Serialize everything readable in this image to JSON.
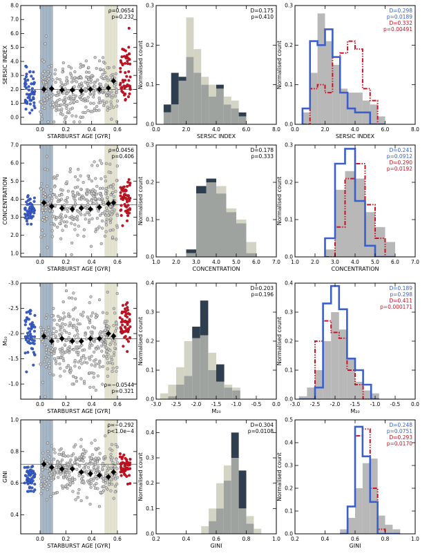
{
  "colors": {
    "dark_bar": "#2f3e4e",
    "light_bar": "#d4d4c4",
    "overlap_bar": "#9ea3a0",
    "grey_hist": "#b8b8b8",
    "blue": "#3a5fcd",
    "red": "#cc1122",
    "band_blue": "#8fa3b6",
    "band_beige": "#dcdcc4",
    "point_grey": "#cccccc"
  },
  "chart_data": [
    {
      "id": "r1c1",
      "type": "scatter",
      "xlabel": "STARBURST AGE [GYR]",
      "ylabel": "SERSIC INDEX",
      "xlim": [
        -0.15,
        0.75
      ],
      "ylim": [
        -0.5,
        8.0
      ],
      "xticks": [
        0.0,
        0.2,
        0.4,
        0.6
      ],
      "xticklabels": [
        "0.0",
        "0.2",
        "0.4",
        "0.6"
      ],
      "yticks": [
        0.0,
        1.0,
        2.0,
        3.0,
        4.0,
        5.0,
        6.0,
        7.0,
        8.0
      ],
      "yticklabels": [
        "0.0",
        "1.0",
        "2.0",
        "3.0",
        "4.0",
        "5.0",
        "6.0",
        "7.0",
        "8.0"
      ],
      "hline": 2.0,
      "bands": [
        [
          0.0,
          0.1,
          "blue"
        ],
        [
          0.5,
          0.6,
          "beige"
        ]
      ],
      "stats": [
        "ρ=0.0654",
        "p=0.232"
      ],
      "stats_pos": "top",
      "binned_x": [
        0.03,
        0.09,
        0.17,
        0.25,
        0.32,
        0.39,
        0.46,
        0.53,
        0.57
      ],
      "binned_y": [
        2.0,
        2.05,
        1.95,
        1.95,
        1.9,
        2.0,
        2.0,
        2.1,
        2.6
      ],
      "blue_y": [
        1.9,
        0.8
      ],
      "red_y": [
        3.0,
        1.2
      ],
      "grey_y": [
        1.9,
        1.1
      ],
      "seed": 11
    },
    {
      "id": "r1c2",
      "type": "bar",
      "xlabel": "SERSIC INDEX",
      "ylabel": "Normalised count",
      "xlim": [
        0.0,
        8.0
      ],
      "ylim": [
        0.0,
        0.3
      ],
      "xticks": [
        0,
        2,
        4,
        6,
        8
      ],
      "xticklabels": [
        "0.0",
        "2.0",
        "4.0",
        "6.0",
        "8.0"
      ],
      "yticks": [
        0.0,
        0.1,
        0.2,
        0.3
      ],
      "yticklabels": [
        "0.0",
        "0.1",
        "0.2",
        "0.3"
      ],
      "bin_edges": [
        0.5,
        1.0,
        1.5,
        2.0,
        2.5,
        3.0,
        3.5,
        4.0,
        4.5,
        5.0,
        5.5,
        6.0
      ],
      "series": [
        {
          "name": "dark",
          "values": [
            0.05,
            0.13,
            0.12,
            0.17,
            0.13,
            0.1,
            0.07,
            0.1,
            0.05,
            0.04,
            0.03
          ]
        },
        {
          "name": "light",
          "values": [
            0.03,
            0.05,
            0.11,
            0.27,
            0.19,
            0.12,
            0.1,
            0.09,
            0.07,
            0.06,
            0.02
          ]
        }
      ],
      "stats": [
        "D=0.175",
        "p=0.410"
      ]
    },
    {
      "id": "r1c3",
      "type": "bar",
      "xlabel": "SERSIC INDEX",
      "ylabel": "Normalised count",
      "xlim": [
        0.0,
        8.0
      ],
      "ylim": [
        0.0,
        0.3
      ],
      "xticks": [
        0,
        2,
        4,
        6,
        8
      ],
      "xticklabels": [
        "0.0",
        "2.0",
        "4.0",
        "6.0",
        "8.0"
      ],
      "yticks": [
        0.0,
        0.1,
        0.2,
        0.3
      ],
      "yticklabels": [
        "0.0",
        "0.1",
        "0.2",
        "0.3"
      ],
      "bin_edges": [
        0.5,
        1.0,
        1.5,
        2.0,
        2.5,
        3.0,
        3.5,
        4.0,
        4.5,
        5.0,
        5.5,
        6.0
      ],
      "series": [
        {
          "name": "grey",
          "values": [
            0.03,
            0.13,
            0.28,
            0.21,
            0.15,
            0.09,
            0.08,
            0.08,
            0.06,
            0.05,
            0.02
          ]
        },
        {
          "name": "blue",
          "values": [
            0.04,
            0.21,
            0.2,
            0.24,
            0.17,
            0.08,
            0.04,
            0.03,
            0.03,
            0.0,
            0.0
          ]
        },
        {
          "name": "red",
          "values": [
            0.0,
            0.09,
            0.1,
            0.08,
            0.17,
            0.18,
            0.21,
            0.19,
            0.09,
            0.06,
            0.0
          ]
        }
      ],
      "stats": [
        "D=0.298",
        "p=0.0189",
        "D=0.332",
        "p=0.00491"
      ],
      "stats_colors": [
        "blue",
        "blue",
        "red",
        "red"
      ]
    },
    {
      "id": "r2c1",
      "type": "scatter",
      "xlabel": "STARBURST AGE [GYR]",
      "ylabel": "CONCENTRATION",
      "xlim": [
        -0.15,
        0.75
      ],
      "ylim": [
        0.8,
        7.0
      ],
      "xticks": [
        0.0,
        0.2,
        0.4,
        0.6
      ],
      "xticklabels": [
        "0.0",
        "0.2",
        "0.4",
        "0.6"
      ],
      "yticks": [
        1.0,
        2.0,
        3.0,
        4.0,
        5.0,
        6.0,
        7.0
      ],
      "yticklabels": [
        "1.0",
        "2.0",
        "3.0",
        "4.0",
        "5.0",
        "6.0",
        "7.0"
      ],
      "hline": 3.7,
      "bands": [
        [
          0.0,
          0.1,
          "blue"
        ],
        [
          0.5,
          0.6,
          "beige"
        ]
      ],
      "stats": [
        "ρ=0.0456",
        "p=0.406"
      ],
      "stats_pos": "top",
      "binned_x": [
        0.03,
        0.09,
        0.17,
        0.25,
        0.32,
        0.39,
        0.46,
        0.53,
        0.57
      ],
      "binned_y": [
        3.8,
        3.6,
        3.5,
        3.45,
        3.5,
        3.45,
        3.55,
        3.75,
        3.8
      ],
      "blue_y": [
        3.5,
        0.4
      ],
      "red_y": [
        4.0,
        0.5
      ],
      "grey_y": [
        3.8,
        0.9
      ],
      "seed": 23
    },
    {
      "id": "r2c2",
      "type": "bar",
      "xlabel": "CONCENTRATION",
      "ylabel": "Normalised count",
      "xlim": [
        1.0,
        7.0
      ],
      "ylim": [
        0.0,
        0.3
      ],
      "xticks": [
        1,
        2,
        3,
        4,
        5,
        6,
        7
      ],
      "xticklabels": [
        "1.0",
        "2.0",
        "3.0",
        "4.0",
        "5.0",
        "6.0",
        "7.0"
      ],
      "yticks": [
        0.0,
        0.1,
        0.2,
        0.3
      ],
      "yticklabels": [
        "0.0",
        "0.1",
        "0.2",
        "0.3"
      ],
      "bin_edges": [
        2.5,
        3.0,
        3.5,
        4.0,
        4.5,
        5.0,
        5.5,
        6.0
      ],
      "series": [
        {
          "name": "dark",
          "values": [
            0.02,
            0.19,
            0.21,
            0.17,
            0.12,
            0.09,
            0.01
          ]
        },
        {
          "name": "light",
          "values": [
            0.01,
            0.17,
            0.2,
            0.19,
            0.13,
            0.1,
            0.04
          ]
        }
      ],
      "stats": [
        "D=0.178",
        "p=0.333"
      ]
    },
    {
      "id": "r2c3",
      "type": "bar",
      "xlabel": "CONCENTRATION",
      "ylabel": "Normalised count",
      "xlim": [
        1.0,
        7.0
      ],
      "ylim": [
        0.0,
        0.3
      ],
      "xticks": [
        1,
        2,
        3,
        4,
        5,
        6,
        7
      ],
      "xticklabels": [
        "1.0",
        "2.0",
        "3.0",
        "4.0",
        "5.0",
        "6.0",
        "7.0"
      ],
      "yticks": [
        0.0,
        0.1,
        0.2,
        0.3
      ],
      "yticklabels": [
        "0.0",
        "0.1",
        "0.2",
        "0.3"
      ],
      "bin_edges": [
        2.5,
        3.0,
        3.5,
        4.0,
        4.5,
        5.0,
        5.5,
        6.0
      ],
      "series": [
        {
          "name": "grey",
          "values": [
            0.02,
            0.18,
            0.23,
            0.21,
            0.12,
            0.08,
            0.04
          ]
        },
        {
          "name": "blue",
          "values": [
            0.05,
            0.25,
            0.29,
            0.15,
            0.03,
            0.0,
            0.0
          ]
        },
        {
          "name": "red",
          "values": [
            0.0,
            0.08,
            0.21,
            0.25,
            0.14,
            0.05,
            0.0
          ]
        }
      ],
      "stats": [
        "D=0.241",
        "p=0.0912",
        "D=0.290",
        "p=0.0192"
      ],
      "stats_colors": [
        "blue",
        "blue",
        "red",
        "red"
      ]
    },
    {
      "id": "r3c1",
      "type": "scatter",
      "xlabel": "STARBURST AGE [GYR]",
      "ylabel": "M₂₀",
      "xlim": [
        -0.15,
        0.75
      ],
      "ylim": [
        -0.7,
        -3.0
      ],
      "xticks": [
        0.0,
        0.2,
        0.4,
        0.6
      ],
      "xticklabels": [
        "0.0",
        "0.2",
        "0.4",
        "0.6"
      ],
      "yticks": [
        -1.0,
        -1.5,
        -2.0,
        -2.5,
        -3.0
      ],
      "yticklabels": [
        "-1.0",
        "-1.5",
        "-2.0",
        "-2.5",
        "-3.0"
      ],
      "hline": -1.9,
      "bands": [
        [
          0.0,
          0.1,
          "blue"
        ],
        [
          0.5,
          0.6,
          "beige"
        ]
      ],
      "stats": [
        "ρ=−0.0544",
        "p=0.321"
      ],
      "stats_pos": "bottom",
      "binned_x": [
        0.03,
        0.09,
        0.17,
        0.25,
        0.32,
        0.39,
        0.46,
        0.53,
        0.57
      ],
      "binned_y": [
        -1.95,
        -1.85,
        -1.9,
        -1.85,
        -1.85,
        -1.9,
        -1.9,
        -2.0,
        -1.95
      ],
      "blue_y": [
        -2.0,
        0.25
      ],
      "red_y": [
        -2.2,
        0.2
      ],
      "grey_y": [
        -1.85,
        0.4
      ],
      "seed": 37
    },
    {
      "id": "r3c2",
      "type": "bar",
      "xlabel": "M₂₀",
      "ylabel": "Normalised count",
      "xlim": [
        -3.0,
        0.0
      ],
      "ylim": [
        0.0,
        0.4
      ],
      "xticks": [
        -3.0,
        -2.5,
        -2.0,
        -1.5,
        -1.0,
        -0.5,
        0.0
      ],
      "xticklabels": [
        "-3.0",
        "-2.5",
        "-2.0",
        "-1.5",
        "-1.0",
        "-0.5",
        "0.0"
      ],
      "yticks": [
        0.0,
        0.1,
        0.2,
        0.3,
        0.4
      ],
      "yticklabels": [
        "0.0",
        "0.1",
        "0.2",
        "0.3",
        "0.4"
      ],
      "bin_edges": [
        -2.9,
        -2.7,
        -2.5,
        -2.3,
        -2.1,
        -1.9,
        -1.7,
        -1.5,
        -1.3,
        -1.1,
        -0.9
      ],
      "series": [
        {
          "name": "dark",
          "values": [
            0.0,
            0.01,
            0.05,
            0.08,
            0.25,
            0.34,
            0.1,
            0.12,
            0.04,
            0.03
          ]
        },
        {
          "name": "light",
          "values": [
            0.02,
            0.05,
            0.11,
            0.2,
            0.21,
            0.22,
            0.16,
            0.06,
            0.05,
            0.04
          ]
        }
      ],
      "stats": [
        "D=0.203",
        "p=0.196"
      ]
    },
    {
      "id": "r3c3",
      "type": "bar",
      "xlabel": "M₂₀",
      "ylabel": "Normalised count",
      "xlim": [
        -3.0,
        0.0
      ],
      "ylim": [
        0.0,
        0.4
      ],
      "xticks": [
        -3.0,
        -2.5,
        -2.0,
        -1.5,
        -1.0,
        -0.5,
        0.0
      ],
      "xticklabels": [
        "-3.0",
        "-2.5",
        "-2.0",
        "-1.5",
        "-1.0",
        "-0.5",
        "0.0"
      ],
      "yticks": [
        0.0,
        0.1,
        0.2,
        0.3,
        0.4
      ],
      "yticklabels": [
        "0.0",
        "0.1",
        "0.2",
        "0.3",
        "0.4"
      ],
      "bin_edges": [
        -2.9,
        -2.7,
        -2.5,
        -2.3,
        -2.1,
        -1.9,
        -1.7,
        -1.5,
        -1.3,
        -1.1,
        -0.9
      ],
      "series": [
        {
          "name": "grey",
          "values": [
            0.01,
            0.04,
            0.1,
            0.2,
            0.3,
            0.24,
            0.14,
            0.06,
            0.03,
            0.02
          ]
        },
        {
          "name": "blue",
          "values": [
            0.0,
            0.0,
            0.04,
            0.33,
            0.39,
            0.31,
            0.14,
            0.1,
            0.05,
            0.0
          ]
        },
        {
          "name": "red",
          "values": [
            0.0,
            0.0,
            0.2,
            0.27,
            0.23,
            0.21,
            0.1,
            0.05,
            0.0,
            0.0
          ]
        }
      ],
      "stats": [
        "D=0.189",
        "p=0.298",
        "D=0.411",
        "p=0.000171"
      ],
      "stats_colors": [
        "blue",
        "blue",
        "red",
        "red"
      ]
    },
    {
      "id": "r4c1",
      "type": "scatter",
      "xlabel": "STARBURST AGE [GYR]",
      "ylabel": "GINI",
      "xlim": [
        -0.15,
        0.75
      ],
      "ylim": [
        0.28,
        1.0
      ],
      "xticks": [
        0.0,
        0.2,
        0.4,
        0.6
      ],
      "xticklabels": [
        "0.0",
        "0.2",
        "0.4",
        "0.6"
      ],
      "yticks": [
        0.4,
        0.6,
        0.8,
        1.0
      ],
      "yticklabels": [
        "0.4",
        "0.6",
        "0.8",
        "1.0"
      ],
      "hline": 0.72,
      "bands": [
        [
          0.0,
          0.1,
          "blue"
        ],
        [
          0.5,
          0.6,
          "beige"
        ]
      ],
      "stats": [
        "ρ=−0.292",
        "p<1.0e−4"
      ],
      "stats_pos": "top",
      "binned_x": [
        0.03,
        0.09,
        0.17,
        0.25,
        0.32,
        0.39,
        0.46,
        0.53,
        0.57
      ],
      "binned_y": [
        0.72,
        0.7,
        0.69,
        0.69,
        0.67,
        0.66,
        0.65,
        0.64,
        0.67
      ],
      "blue_y": [
        0.64,
        0.05
      ],
      "red_y": [
        0.7,
        0.04
      ],
      "grey_y": [
        0.68,
        0.08
      ],
      "seed": 53
    },
    {
      "id": "r4c2",
      "type": "bar",
      "xlabel": "GINI",
      "ylabel": "Normalised count",
      "xlim": [
        0.2,
        1.0
      ],
      "ylim": [
        0.0,
        0.45
      ],
      "xticks": [
        0.2,
        0.4,
        0.6,
        0.8,
        1.0
      ],
      "xticklabels": [
        "0.2",
        "0.4",
        "0.6",
        "0.8",
        "1.0"
      ],
      "yticks": [
        0.0,
        0.1,
        0.2,
        0.3,
        0.4
      ],
      "yticklabels": [
        "0.0",
        "0.1",
        "0.2",
        "0.3",
        "0.4"
      ],
      "bin_edges": [
        0.5,
        0.55,
        0.6,
        0.65,
        0.7,
        0.75,
        0.8,
        0.85,
        0.9
      ],
      "series": [
        {
          "name": "dark",
          "values": [
            0.0,
            0.05,
            0.1,
            0.21,
            0.4,
            0.25,
            0.04,
            0.0
          ]
        },
        {
          "name": "light",
          "values": [
            0.03,
            0.1,
            0.2,
            0.27,
            0.3,
            0.1,
            0.07,
            0.02
          ]
        }
      ],
      "stats": [
        "D=0.304",
        "p=0.0108"
      ]
    },
    {
      "id": "r4c3",
      "type": "bar",
      "xlabel": "GINI",
      "ylabel": "Normalised count",
      "xlim": [
        0.2,
        1.0
      ],
      "ylim": [
        0.0,
        0.5
      ],
      "xticks": [
        0.2,
        0.4,
        0.6,
        0.8,
        1.0
      ],
      "xticklabels": [
        "0.2",
        "0.4",
        "0.6",
        "0.8",
        "1.0"
      ],
      "yticks": [
        0.0,
        0.1,
        0.2,
        0.3,
        0.4,
        0.5
      ],
      "yticklabels": [
        "0.0",
        "0.1",
        "0.2",
        "0.3",
        "0.4",
        "0.5"
      ],
      "bin_edges": [
        0.5,
        0.55,
        0.6,
        0.65,
        0.7,
        0.75,
        0.8,
        0.85,
        0.9
      ],
      "series": [
        {
          "name": "grey",
          "values": [
            0.02,
            0.07,
            0.2,
            0.31,
            0.33,
            0.08,
            0.04,
            0.02
          ]
        },
        {
          "name": "blue",
          "values": [
            0.0,
            0.12,
            0.47,
            0.34,
            0.14,
            0.0,
            0.0,
            0.0
          ]
        },
        {
          "name": "red",
          "values": [
            0.0,
            0.12,
            0.43,
            0.46,
            0.2,
            0.02,
            0.0,
            0.0
          ]
        }
      ],
      "stats": [
        "D=0.248",
        "p=0.0751",
        "D=0.293",
        "p=0.0170"
      ],
      "stats_colors": [
        "blue",
        "blue",
        "red",
        "red"
      ]
    }
  ]
}
